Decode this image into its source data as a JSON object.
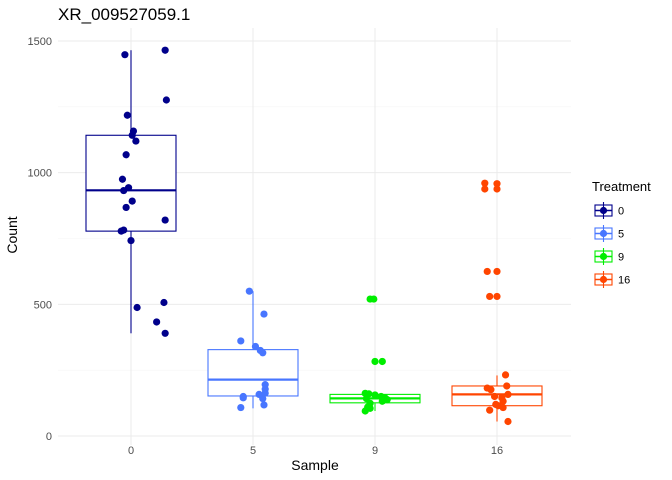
{
  "chart_data": {
    "type": "boxplot",
    "title": "XR_009527059.1",
    "xlabel": "Sample",
    "ylabel": "Count",
    "ylim": [
      -10,
      1500
    ],
    "y_ticks": [
      0,
      500,
      1000,
      1500
    ],
    "categories": [
      "0",
      "5",
      "9",
      "16"
    ],
    "legend": {
      "title": "Treatment",
      "position": "right",
      "entries": [
        "0",
        "5",
        "9",
        "16"
      ]
    },
    "series": [
      {
        "name": "0",
        "color": "#00008B",
        "box": {
          "q1": 778,
          "median": 933,
          "q3": 1142,
          "whisker_low": 390,
          "whisker_high": 1465
        },
        "points": [
          {
            "x": 0.28,
            "y": 1465
          },
          {
            "x": -0.05,
            "y": 1448
          },
          {
            "x": 0.29,
            "y": 1276
          },
          {
            "x": -0.03,
            "y": 1218
          },
          {
            "x": 0.02,
            "y": 1158
          },
          {
            "x": 0.01,
            "y": 1142
          },
          {
            "x": 0.04,
            "y": 1120
          },
          {
            "x": -0.04,
            "y": 1068
          },
          {
            "x": -0.07,
            "y": 975
          },
          {
            "x": -0.02,
            "y": 943
          },
          {
            "x": -0.06,
            "y": 932
          },
          {
            "x": 0.01,
            "y": 892
          },
          {
            "x": -0.04,
            "y": 868
          },
          {
            "x": 0.28,
            "y": 820
          },
          {
            "x": -0.06,
            "y": 782
          },
          {
            "x": -0.08,
            "y": 778
          },
          {
            "x": 0.0,
            "y": 742
          },
          {
            "x": 0.27,
            "y": 507
          },
          {
            "x": 0.05,
            "y": 488
          },
          {
            "x": 0.21,
            "y": 433
          },
          {
            "x": 0.28,
            "y": 390
          }
        ]
      },
      {
        "name": "5",
        "color": "#4876FF",
        "box": {
          "q1": 152,
          "median": 214,
          "q3": 328,
          "whisker_low": 105,
          "whisker_high": 550
        },
        "points": [
          {
            "x": -0.03,
            "y": 550
          },
          {
            "x": 0.09,
            "y": 463
          },
          {
            "x": -0.1,
            "y": 361
          },
          {
            "x": 0.02,
            "y": 340
          },
          {
            "x": 0.06,
            "y": 325
          },
          {
            "x": 0.08,
            "y": 316
          },
          {
            "x": 0.1,
            "y": 195
          },
          {
            "x": 0.1,
            "y": 178
          },
          {
            "x": 0.1,
            "y": 163
          },
          {
            "x": 0.05,
            "y": 158
          },
          {
            "x": -0.08,
            "y": 150
          },
          {
            "x": -0.08,
            "y": 145
          },
          {
            "x": 0.08,
            "y": 142
          },
          {
            "x": 0.09,
            "y": 118
          },
          {
            "x": -0.1,
            "y": 108
          }
        ]
      },
      {
        "name": "9",
        "color": "#00EE00",
        "box": {
          "q1": 126,
          "median": 143,
          "q3": 158,
          "whisker_low": 95,
          "whisker_high": 165
        },
        "points": [
          {
            "x": -0.04,
            "y": 520
          },
          {
            "x": -0.01,
            "y": 520
          },
          {
            "x": 0.0,
            "y": 283
          },
          {
            "x": 0.06,
            "y": 283
          },
          {
            "x": -0.08,
            "y": 162
          },
          {
            "x": -0.05,
            "y": 160
          },
          {
            "x": 0.0,
            "y": 156
          },
          {
            "x": 0.05,
            "y": 150
          },
          {
            "x": 0.08,
            "y": 146
          },
          {
            "x": -0.07,
            "y": 142
          },
          {
            "x": 0.1,
            "y": 138
          },
          {
            "x": 0.06,
            "y": 132
          },
          {
            "x": -0.04,
            "y": 124
          },
          {
            "x": -0.06,
            "y": 110
          },
          {
            "x": -0.04,
            "y": 105
          },
          {
            "x": -0.08,
            "y": 95
          }
        ]
      },
      {
        "name": "16",
        "color": "#FF4500",
        "box": {
          "q1": 115,
          "median": 158,
          "q3": 190,
          "whisker_low": 55,
          "whisker_high": 230
        },
        "points": [
          {
            "x": -0.1,
            "y": 960
          },
          {
            "x": 0.0,
            "y": 958
          },
          {
            "x": -0.1,
            "y": 938
          },
          {
            "x": 0.0,
            "y": 938
          },
          {
            "x": -0.08,
            "y": 625
          },
          {
            "x": 0.0,
            "y": 625
          },
          {
            "x": -0.06,
            "y": 530
          },
          {
            "x": 0.0,
            "y": 530
          },
          {
            "x": 0.07,
            "y": 232
          },
          {
            "x": 0.08,
            "y": 190
          },
          {
            "x": -0.08,
            "y": 182
          },
          {
            "x": -0.05,
            "y": 176
          },
          {
            "x": 0.09,
            "y": 158
          },
          {
            "x": -0.02,
            "y": 150
          },
          {
            "x": 0.04,
            "y": 145
          },
          {
            "x": 0.05,
            "y": 132
          },
          {
            "x": -0.01,
            "y": 120
          },
          {
            "x": 0.01,
            "y": 115
          },
          {
            "x": 0.05,
            "y": 108
          },
          {
            "x": -0.06,
            "y": 98
          },
          {
            "x": 0.09,
            "y": 55
          }
        ]
      }
    ]
  }
}
